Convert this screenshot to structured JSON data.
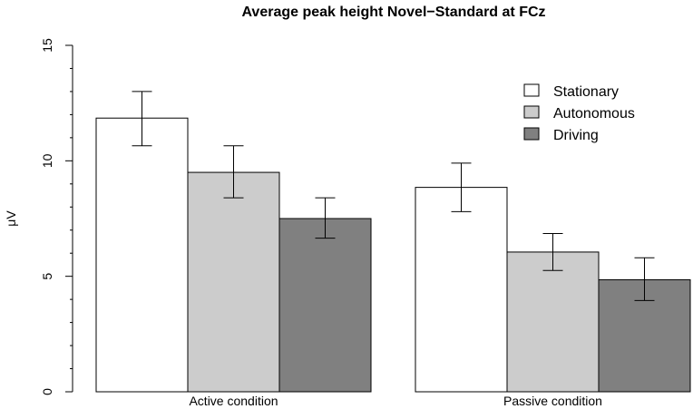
{
  "chart_data": {
    "type": "bar",
    "title": "Average peak height Novel−Standard at FCz",
    "xlabel": "",
    "ylabel": "μV",
    "ylim": [
      0,
      15
    ],
    "y_ticks": [
      0,
      5,
      10,
      15
    ],
    "y_minor_ticks": [
      1,
      2,
      3,
      4,
      6,
      7,
      8,
      9,
      11,
      12,
      13,
      14
    ],
    "grid": false,
    "legend_position": "top-right",
    "categories": [
      "Active condition",
      "Passive condition"
    ],
    "series": [
      {
        "name": "Stationary",
        "color": "#ffffff",
        "values": [
          11.85,
          8.85
        ],
        "error_low": [
          10.65,
          7.8
        ],
        "error_high": [
          13.0,
          9.9
        ]
      },
      {
        "name": "Autonomous",
        "color": "#cccccc",
        "values": [
          9.5,
          6.05
        ],
        "error_low": [
          8.4,
          5.25
        ],
        "error_high": [
          10.65,
          6.85
        ]
      },
      {
        "name": "Driving",
        "color": "#808080",
        "values": [
          7.5,
          4.85
        ],
        "error_low": [
          6.65,
          3.95
        ],
        "error_high": [
          8.4,
          5.8
        ]
      }
    ]
  }
}
